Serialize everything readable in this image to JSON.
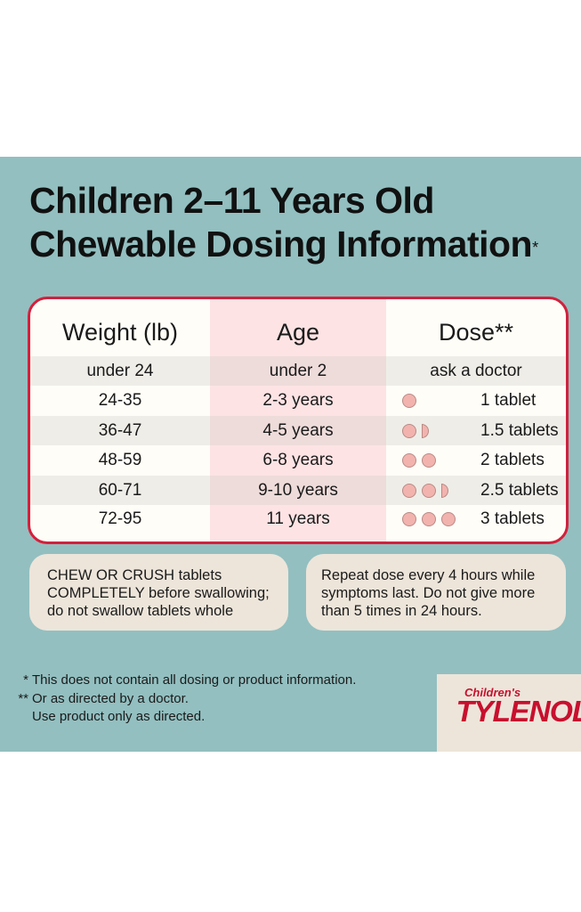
{
  "title": {
    "line1": "Children 2–11 Years Old",
    "line2": "Chewable Dosing Information",
    "marker": "*"
  },
  "table": {
    "headers": [
      "Weight (lb)",
      "Age",
      "Dose**"
    ],
    "rows": [
      {
        "weight": "under 24",
        "age": "under 2",
        "dose": "ask a doctor",
        "tablets": null
      },
      {
        "weight": "24-35",
        "age": "2-3 years",
        "dose": "1 tablet",
        "tablets": 1
      },
      {
        "weight": "36-47",
        "age": "4-5 years",
        "dose": "1.5 tablets",
        "tablets": 1.5
      },
      {
        "weight": "48-59",
        "age": "6-8 years",
        "dose": "2 tablets",
        "tablets": 2
      },
      {
        "weight": "60-71",
        "age": "9-10 years",
        "dose": "2.5 tablets",
        "tablets": 2.5
      },
      {
        "weight": "72-95",
        "age": "11 years",
        "dose": "3 tablets",
        "tablets": 3
      }
    ]
  },
  "notes": {
    "left": [
      "CHEW OR CRUSH tablets",
      "COMPLETELY before swallowing;",
      "do not swallow tablets whole"
    ],
    "right": [
      "Repeat dose every 4 hours while",
      "symptoms last. Do not give more",
      "than 5 times in 24 hours."
    ]
  },
  "footnotes": {
    "f1_mark": "*",
    "f1": "This does not contain all dosing or product information.",
    "f2_mark": "**",
    "f2a": "Or as directed by a doctor.",
    "f2b": "Use product only as directed."
  },
  "logo": {
    "small": "Children's",
    "big": "TYLENOL"
  },
  "colors": {
    "panel": "#93bfc0",
    "accent_red": "#d3203c",
    "age_column": "#fde3e4",
    "note_bg": "#ede5da",
    "pill": "#f2b3ae"
  }
}
